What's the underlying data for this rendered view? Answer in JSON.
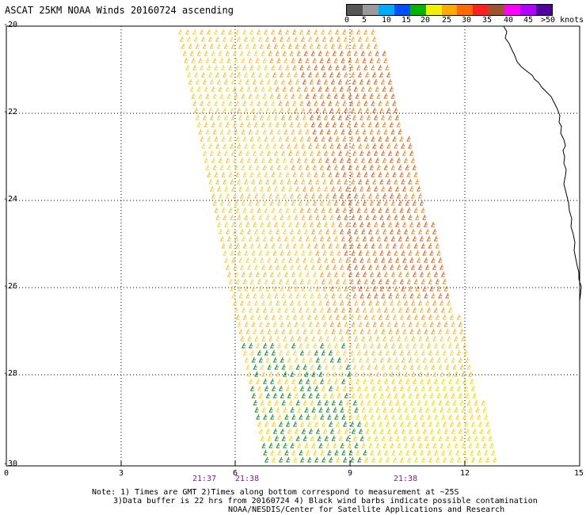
{
  "title": "ASCAT 25KM NOAA Winds 20160724 ascending",
  "legend": {
    "colors": [
      "#555555",
      "#9a9a9a",
      "#00aaff",
      "#0050ff",
      "#00b400",
      "#f0f000",
      "#ffaa00",
      "#ff6a00",
      "#ff2020",
      "#a0522d",
      "#ff00ff",
      "#b000ff",
      "#5000a0"
    ],
    "ticks": [
      "0",
      "5",
      "10",
      "15",
      "20",
      "25",
      "30",
      "35",
      "40",
      "45",
      ">50 knots"
    ]
  },
  "axes": {
    "y_labels": [
      "-20",
      "-22",
      "-24",
      "-26",
      "-28",
      "-30"
    ],
    "x_labels": [
      "0",
      "3",
      "6",
      "9",
      "12",
      "15"
    ]
  },
  "times": [
    "21:37",
    "21:38",
    "21:38"
  ],
  "notes": {
    "line1": "Note: 1) Times are GMT 2)Times along bottom correspond to measurement at ~25S",
    "line2": "3)Data buffer is 22 hrs from 20160724 4) Black wind barbs indicate possible contamination",
    "line3": "NOAA/NESDIS/Center for Satellite Applications and Research"
  }
}
